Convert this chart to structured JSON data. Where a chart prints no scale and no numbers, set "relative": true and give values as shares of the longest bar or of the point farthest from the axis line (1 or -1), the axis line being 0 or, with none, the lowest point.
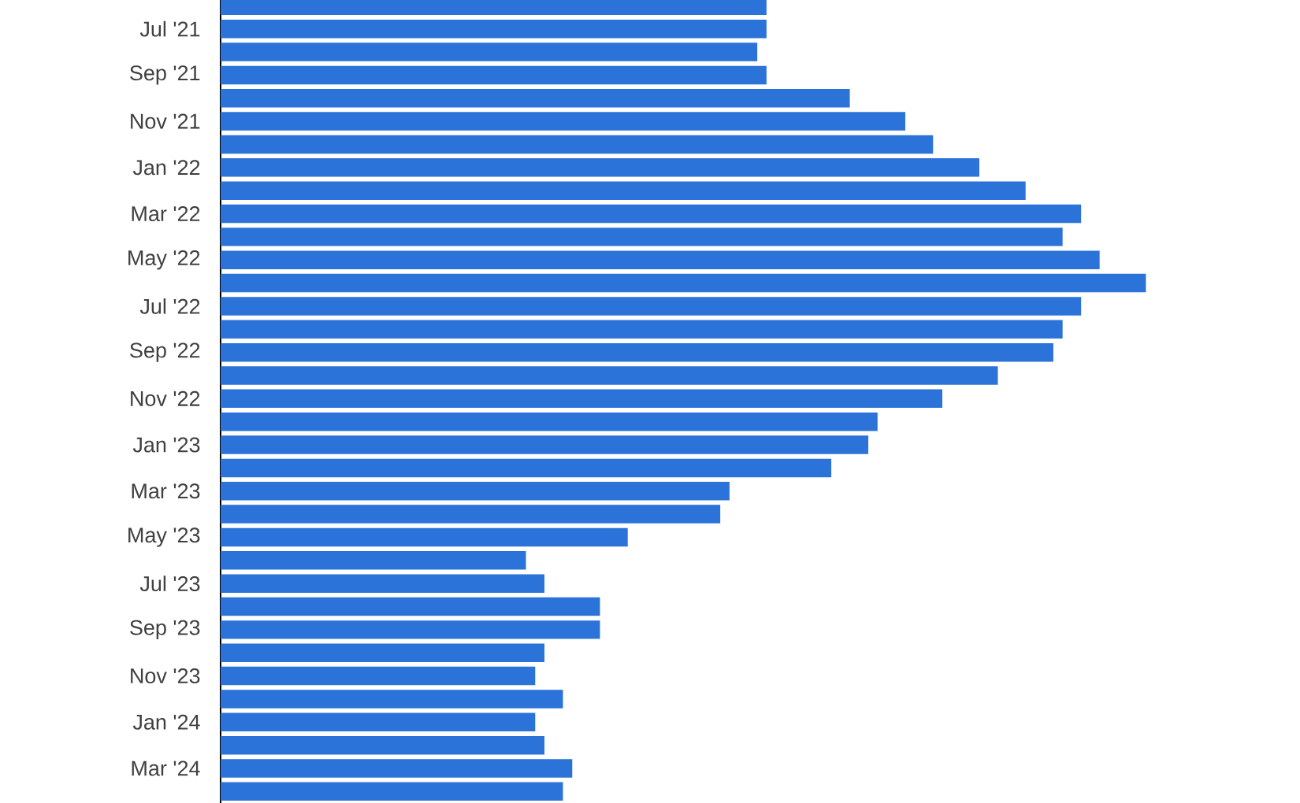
{
  "chart_data": {
    "type": "bar",
    "orientation": "horizontal",
    "relative": true,
    "color": "#2b72d9",
    "categories": [
      null,
      "Jul '21",
      null,
      "Sep '21",
      null,
      "Nov '21",
      null,
      "Jan '22",
      null,
      "Mar '22",
      null,
      "May '22",
      null,
      "Jul '22",
      null,
      "Sep '22",
      null,
      "Nov '22",
      null,
      "Jan '23",
      null,
      "Mar '23",
      null,
      "May '23",
      null,
      "Jul '23",
      null,
      "Sep '23",
      null,
      "Nov '23",
      null,
      "Jan '24",
      null,
      "Mar '24",
      null
    ],
    "values": [
      0.59,
      0.59,
      0.58,
      0.59,
      0.68,
      0.74,
      0.77,
      0.82,
      0.87,
      0.93,
      0.91,
      0.95,
      1,
      0.93,
      0.91,
      0.9,
      0.84,
      0.78,
      0.71,
      0.7,
      0.66,
      0.55,
      0.54,
      0.44,
      0.33,
      0.35,
      0.41,
      0.41,
      0.35,
      0.34,
      0.37,
      0.34,
      0.35,
      0.38,
      0.37
    ]
  }
}
